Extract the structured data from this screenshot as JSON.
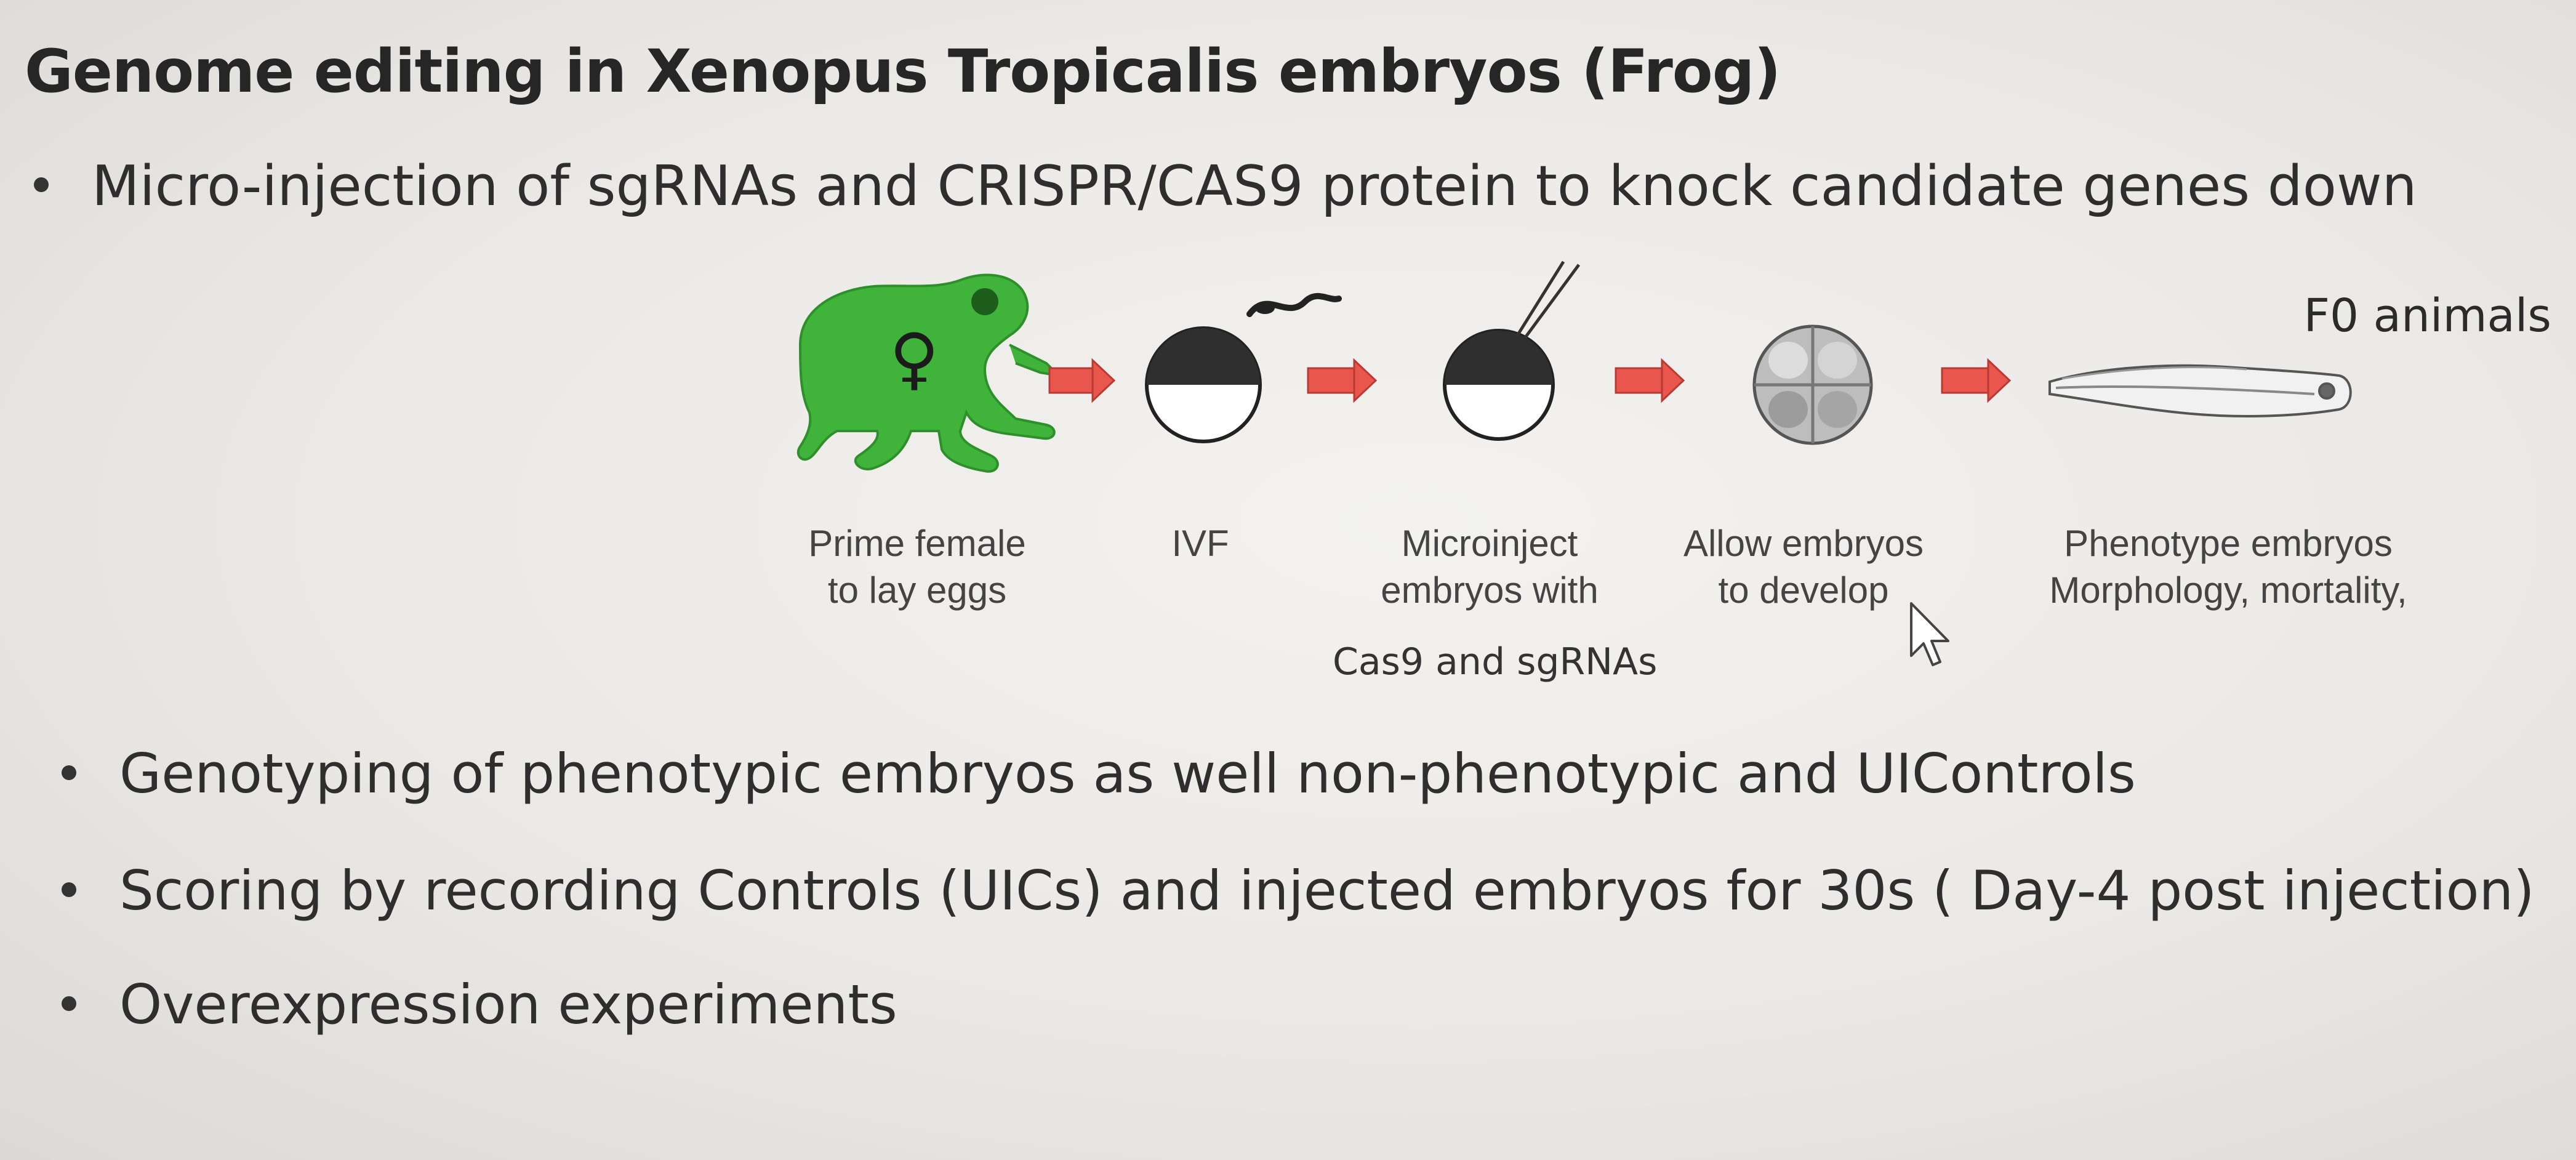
{
  "slide": {
    "title": "Genome editing in Xenopus Tropicalis embryos (Frog)",
    "bullets": [
      "Micro-injection of sgRNAs and CRISPR/CAS9 protein to knock candidate genes down",
      "Genotyping of phenotypic embryos as well non-phenotypic and UIControls",
      "Scoring by recording Controls (UICs) and injected embryos for 30s ( Day-4 post injection)",
      "Overexpression experiments"
    ]
  },
  "diagram": {
    "f0_label": "F0 animals",
    "female_symbol": "♀",
    "steps": [
      {
        "line1": "Prime female",
        "line2": "to lay eggs"
      },
      {
        "line1": "IVF",
        "line2": ""
      },
      {
        "line1": "Microinject",
        "line2": "embryos with"
      },
      {
        "line1": "Allow embryos",
        "line2": "to develop"
      },
      {
        "line1": "Phenotype embryos",
        "line2": "Morphology, mortality,"
      }
    ],
    "extra_label": "Cas9 and sgRNAs",
    "colors": {
      "frog": "#3fb33a",
      "arrow": "#e8564e",
      "embryo_dark": "#2f2f2f"
    }
  }
}
